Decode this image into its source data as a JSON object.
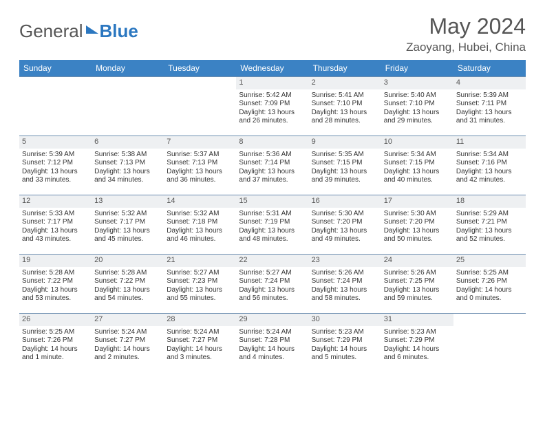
{
  "logo": {
    "part1": "General",
    "part2": "Blue"
  },
  "title": "May 2024",
  "location": "Zaoyang, Hubei, China",
  "colors": {
    "header_bg": "#3b82c4",
    "header_text": "#ffffff",
    "daynum_bg": "#eef0f2",
    "border": "#6a8caf",
    "text": "#333333",
    "accent": "#2b77c0"
  },
  "weekdays": [
    "Sunday",
    "Monday",
    "Tuesday",
    "Wednesday",
    "Thursday",
    "Friday",
    "Saturday"
  ],
  "weeks": [
    [
      null,
      null,
      null,
      {
        "n": "1",
        "sr": "5:42 AM",
        "ss": "7:09 PM",
        "dl": "13 hours and 26 minutes."
      },
      {
        "n": "2",
        "sr": "5:41 AM",
        "ss": "7:10 PM",
        "dl": "13 hours and 28 minutes."
      },
      {
        "n": "3",
        "sr": "5:40 AM",
        "ss": "7:10 PM",
        "dl": "13 hours and 29 minutes."
      },
      {
        "n": "4",
        "sr": "5:39 AM",
        "ss": "7:11 PM",
        "dl": "13 hours and 31 minutes."
      }
    ],
    [
      {
        "n": "5",
        "sr": "5:39 AM",
        "ss": "7:12 PM",
        "dl": "13 hours and 33 minutes."
      },
      {
        "n": "6",
        "sr": "5:38 AM",
        "ss": "7:13 PM",
        "dl": "13 hours and 34 minutes."
      },
      {
        "n": "7",
        "sr": "5:37 AM",
        "ss": "7:13 PM",
        "dl": "13 hours and 36 minutes."
      },
      {
        "n": "8",
        "sr": "5:36 AM",
        "ss": "7:14 PM",
        "dl": "13 hours and 37 minutes."
      },
      {
        "n": "9",
        "sr": "5:35 AM",
        "ss": "7:15 PM",
        "dl": "13 hours and 39 minutes."
      },
      {
        "n": "10",
        "sr": "5:34 AM",
        "ss": "7:15 PM",
        "dl": "13 hours and 40 minutes."
      },
      {
        "n": "11",
        "sr": "5:34 AM",
        "ss": "7:16 PM",
        "dl": "13 hours and 42 minutes."
      }
    ],
    [
      {
        "n": "12",
        "sr": "5:33 AM",
        "ss": "7:17 PM",
        "dl": "13 hours and 43 minutes."
      },
      {
        "n": "13",
        "sr": "5:32 AM",
        "ss": "7:17 PM",
        "dl": "13 hours and 45 minutes."
      },
      {
        "n": "14",
        "sr": "5:32 AM",
        "ss": "7:18 PM",
        "dl": "13 hours and 46 minutes."
      },
      {
        "n": "15",
        "sr": "5:31 AM",
        "ss": "7:19 PM",
        "dl": "13 hours and 48 minutes."
      },
      {
        "n": "16",
        "sr": "5:30 AM",
        "ss": "7:20 PM",
        "dl": "13 hours and 49 minutes."
      },
      {
        "n": "17",
        "sr": "5:30 AM",
        "ss": "7:20 PM",
        "dl": "13 hours and 50 minutes."
      },
      {
        "n": "18",
        "sr": "5:29 AM",
        "ss": "7:21 PM",
        "dl": "13 hours and 52 minutes."
      }
    ],
    [
      {
        "n": "19",
        "sr": "5:28 AM",
        "ss": "7:22 PM",
        "dl": "13 hours and 53 minutes."
      },
      {
        "n": "20",
        "sr": "5:28 AM",
        "ss": "7:22 PM",
        "dl": "13 hours and 54 minutes."
      },
      {
        "n": "21",
        "sr": "5:27 AM",
        "ss": "7:23 PM",
        "dl": "13 hours and 55 minutes."
      },
      {
        "n": "22",
        "sr": "5:27 AM",
        "ss": "7:24 PM",
        "dl": "13 hours and 56 minutes."
      },
      {
        "n": "23",
        "sr": "5:26 AM",
        "ss": "7:24 PM",
        "dl": "13 hours and 58 minutes."
      },
      {
        "n": "24",
        "sr": "5:26 AM",
        "ss": "7:25 PM",
        "dl": "13 hours and 59 minutes."
      },
      {
        "n": "25",
        "sr": "5:25 AM",
        "ss": "7:26 PM",
        "dl": "14 hours and 0 minutes."
      }
    ],
    [
      {
        "n": "26",
        "sr": "5:25 AM",
        "ss": "7:26 PM",
        "dl": "14 hours and 1 minute."
      },
      {
        "n": "27",
        "sr": "5:24 AM",
        "ss": "7:27 PM",
        "dl": "14 hours and 2 minutes."
      },
      {
        "n": "28",
        "sr": "5:24 AM",
        "ss": "7:27 PM",
        "dl": "14 hours and 3 minutes."
      },
      {
        "n": "29",
        "sr": "5:24 AM",
        "ss": "7:28 PM",
        "dl": "14 hours and 4 minutes."
      },
      {
        "n": "30",
        "sr": "5:23 AM",
        "ss": "7:29 PM",
        "dl": "14 hours and 5 minutes."
      },
      {
        "n": "31",
        "sr": "5:23 AM",
        "ss": "7:29 PM",
        "dl": "14 hours and 6 minutes."
      },
      null
    ]
  ],
  "labels": {
    "sunrise": "Sunrise:",
    "sunset": "Sunset:",
    "daylight": "Daylight:"
  }
}
